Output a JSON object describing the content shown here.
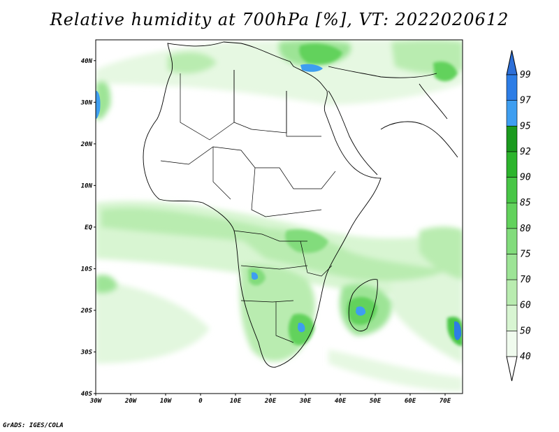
{
  "title": "Relative humidity at 700hPa [%], VT: 2022020612",
  "credit": "GrADS: IGES/COLA",
  "map": {
    "lon_range": [
      -30,
      75
    ],
    "lat_range": [
      -40,
      45
    ],
    "lon_ticks": [
      {
        "value": -30,
        "label": "30W"
      },
      {
        "value": -20,
        "label": "20W"
      },
      {
        "value": -10,
        "label": "10W"
      },
      {
        "value": 0,
        "label": "0"
      },
      {
        "value": 10,
        "label": "10E"
      },
      {
        "value": 20,
        "label": "20E"
      },
      {
        "value": 30,
        "label": "30E"
      },
      {
        "value": 40,
        "label": "40E"
      },
      {
        "value": 50,
        "label": "50E"
      },
      {
        "value": 60,
        "label": "60E"
      },
      {
        "value": 70,
        "label": "70E"
      }
    ],
    "lat_ticks": [
      {
        "value": 40,
        "label": "40N"
      },
      {
        "value": 30,
        "label": "30N"
      },
      {
        "value": 20,
        "label": "20N"
      },
      {
        "value": 10,
        "label": "10N"
      },
      {
        "value": 0,
        "label": "EQ"
      },
      {
        "value": -10,
        "label": "10S"
      },
      {
        "value": -20,
        "label": "20S"
      },
      {
        "value": -30,
        "label": "30S"
      },
      {
        "value": -40,
        "label": "40S"
      }
    ]
  },
  "colorbar": {
    "labels": [
      "40",
      "50",
      "60",
      "70",
      "75",
      "80",
      "85",
      "90",
      "92",
      "95",
      "97",
      "99"
    ],
    "colors": [
      "#f0fbee",
      "#d8f5d2",
      "#b9ecb0",
      "#9de496",
      "#82dc7c",
      "#62d25c",
      "#48c646",
      "#2cb42c",
      "#1a9a1e",
      "#3e9ef0",
      "#2d7de6",
      "#1f5fd0"
    ],
    "min_color": "#ffffff",
    "max_color": "#2d6fd8"
  }
}
